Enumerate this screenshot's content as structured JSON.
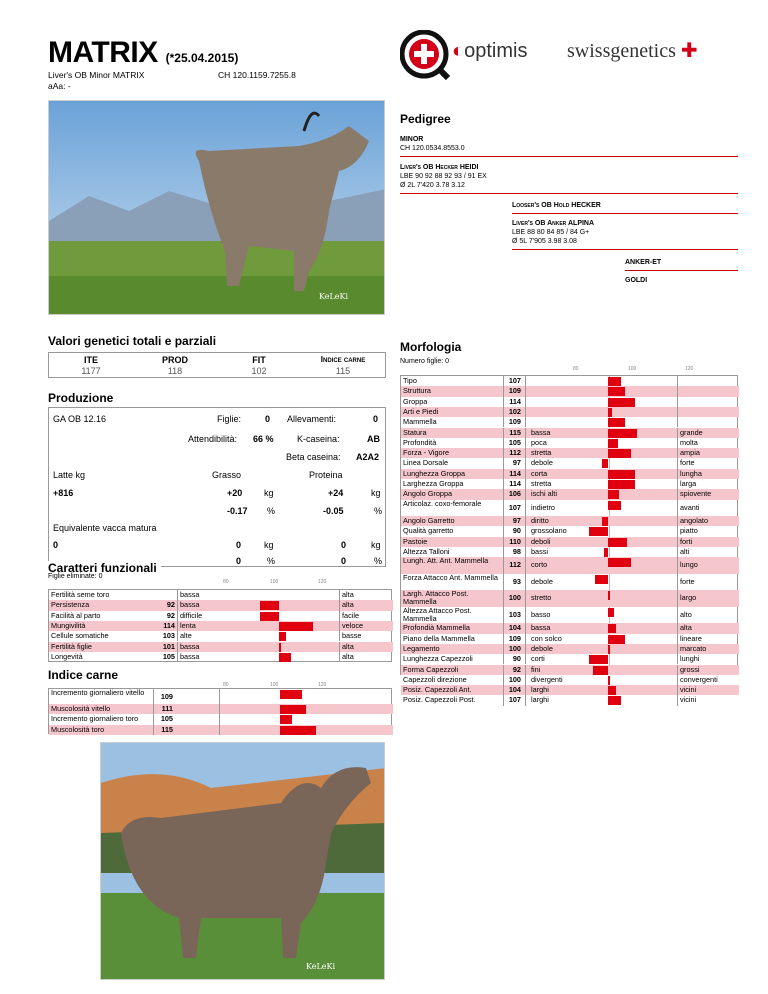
{
  "header": {
    "name": "MATRIX",
    "birth": "(*25.04.2015)",
    "full_name": "Liver's OB Minor MATRIX",
    "id": "CH 120.1159.7255.8",
    "aaa": "aAa: -"
  },
  "logos": {
    "seal_text": "swiss genetics",
    "optimis": "optimis",
    "swissgenetics": "swissgenetics"
  },
  "photo1": {
    "watermark": "KeLeKi"
  },
  "pedigree": {
    "title": "Pedigree",
    "sire": {
      "name": "MINOR",
      "id": "CH 120.0534.8553.0"
    },
    "dam": {
      "name": "Liver's OB Hecker HEIDI",
      "line1": "LBE 90 92 88 92 93 / 91 EX",
      "line2": "Ø 2L  7'420  3.78  3.12"
    },
    "mgs": {
      "name": "Looser's OB Hold HECKER"
    },
    "mgd": {
      "name": "Liver's OB Anker ALPINA",
      "line1": "LBE 88 80 84 85 / 84 G+",
      "line2": "Ø 5L  7'905  3.98  3.08"
    },
    "mgd_sire": {
      "name": "ANKER-ET"
    },
    "mgd_dam": {
      "name": "GOLDI"
    }
  },
  "valori": {
    "title": "Valori genetici totali e parziali",
    "cols": [
      {
        "label": "ITE",
        "value": "1177"
      },
      {
        "label": "PROD",
        "value": "118"
      },
      {
        "label": "FIT",
        "value": "102"
      },
      {
        "label": "Indice carne",
        "value": "115"
      }
    ]
  },
  "produzione": {
    "title": "Produzione",
    "ga": "GA OB 12.16",
    "figlie_label": "Figlie:",
    "figlie": "0",
    "allev_label": "Allevamenti:",
    "allev": "0",
    "att_label": "Attendibilità:",
    "att": "66 %",
    "kcas_label": "K-caseina:",
    "kcas": "AB",
    "bcas_label": "Beta caseina:",
    "bcas": "A2A2",
    "latte_label": "Latte kg",
    "grasso_label": "Grasso",
    "proteina_label": "Proteina",
    "latte": "+816",
    "grasso_kg": "+20",
    "prot_kg": "+24",
    "kg": "kg",
    "grasso_pct": "-0.17",
    "prot_pct": "-0.05",
    "pct": "%",
    "evm_label": "Equivalente vacca matura",
    "evm_latte": "0",
    "evm_g_kg": "0",
    "evm_p_kg": "0",
    "evm_g_pct": "0",
    "evm_p_pct": "0"
  },
  "funzionali": {
    "title": "Caratteri funzionali",
    "figlie_elim": "Figlie eliminate: 0",
    "scale": [
      "80",
      "100",
      "120"
    ],
    "rows": [
      {
        "label": "Fertilità seme toro",
        "value": "",
        "low": "bassa",
        "high": "alta",
        "v": null
      },
      {
        "label": "Persistenza",
        "value": "92",
        "low": "bassa",
        "high": "alta",
        "v": 92
      },
      {
        "label": "Facilità al parto",
        "value": "92",
        "low": "difficile",
        "high": "facile",
        "v": 92
      },
      {
        "label": "Mungivilità",
        "value": "114",
        "low": "lenta",
        "high": "veloce",
        "v": 114
      },
      {
        "label": "Cellule somatiche",
        "value": "103",
        "low": "alte",
        "high": "basse",
        "v": 103
      },
      {
        "label": "Fertilità figlie",
        "value": "101",
        "low": "bassa",
        "high": "alta",
        "v": 101
      },
      {
        "label": "Longevità",
        "value": "105",
        "low": "bassa",
        "high": "alta",
        "v": 105
      }
    ]
  },
  "carne": {
    "title": "Indice carne",
    "scale": [
      "80",
      "100",
      "120"
    ],
    "rows": [
      {
        "label": "Incremento giornaliero vitello",
        "value": "109",
        "v": 109
      },
      {
        "label": "Muscolosità vitello",
        "value": "111",
        "v": 111
      },
      {
        "label": "Incremento giornaliero toro",
        "value": "105",
        "v": 105
      },
      {
        "label": "Muscolosità toro",
        "value": "115",
        "v": 115
      }
    ]
  },
  "morfologia": {
    "title": "Morfologia",
    "figlie": "Numero figlie: 0",
    "scale": [
      "80",
      "100",
      "120"
    ],
    "rows": [
      {
        "label": "Tipo",
        "value": "107",
        "low": "",
        "high": "",
        "v": 107
      },
      {
        "label": "Struttura",
        "value": "109",
        "low": "",
        "high": "",
        "v": 109
      },
      {
        "label": "Groppa",
        "value": "114",
        "low": "",
        "high": "",
        "v": 114
      },
      {
        "label": "Arti e Piedi",
        "value": "102",
        "low": "",
        "high": "",
        "v": 102
      },
      {
        "label": "Mammella",
        "value": "109",
        "low": "",
        "high": "",
        "v": 109
      },
      {
        "label": "Statura",
        "value": "115",
        "low": "bassa",
        "high": "grande",
        "v": 115
      },
      {
        "label": "Profondità",
        "value": "105",
        "low": "poca",
        "high": "molta",
        "v": 105
      },
      {
        "label": "Forza - Vigore",
        "value": "112",
        "low": "stretta",
        "high": "ampia",
        "v": 112
      },
      {
        "label": "Linea Dorsale",
        "value": "97",
        "low": "debole",
        "high": "forte",
        "v": 97
      },
      {
        "label": "Lunghezza Groppa",
        "value": "114",
        "low": "corta",
        "high": "lungha",
        "v": 114
      },
      {
        "label": "Larghezza Groppa",
        "value": "114",
        "low": "stretta",
        "high": "larga",
        "v": 114
      },
      {
        "label": "Angolo Groppa",
        "value": "106",
        "low": "ischi alti",
        "high": "spiovente",
        "v": 106
      },
      {
        "label": "Articolaz. coxo-femorale",
        "value": "107",
        "low": "indietro",
        "high": "avanti",
        "v": 107
      },
      {
        "label": "Angolo Garretto",
        "value": "97",
        "low": "diritto",
        "high": "angolato",
        "v": 97
      },
      {
        "label": "Qualità garretto",
        "value": "90",
        "low": "grossolano",
        "high": "piatto",
        "v": 90
      },
      {
        "label": "Pastoie",
        "value": "110",
        "low": "deboli",
        "high": "forti",
        "v": 110
      },
      {
        "label": "Altezza Talloni",
        "value": "98",
        "low": "bassi",
        "high": "alti",
        "v": 98
      },
      {
        "label": "Lungh. Att. Ant. Mammella",
        "value": "112",
        "low": "corto",
        "high": "lungo",
        "v": 112
      },
      {
        "label": "Forza Attacco Ant. Mammella",
        "value": "93",
        "low": "debole",
        "high": "forte",
        "v": 93
      },
      {
        "label": "Largh. Attacco Post. Mammella",
        "value": "100",
        "low": "stretto",
        "high": "largo",
        "v": 100
      },
      {
        "label": "Altezza Attacco Post. Mammella",
        "value": "103",
        "low": "basso",
        "high": "alto",
        "v": 103
      },
      {
        "label": "Profondià Mammella",
        "value": "104",
        "low": "bassa",
        "high": "alta",
        "v": 104
      },
      {
        "label": "Piano della Mammella",
        "value": "109",
        "low": "con solco",
        "high": "lineare",
        "v": 109
      },
      {
        "label": "Legamento",
        "value": "100",
        "low": "debole",
        "high": "marcato",
        "v": 100
      },
      {
        "label": "Lunghezza Capezzoli",
        "value": "90",
        "low": "corti",
        "high": "lunghi",
        "v": 90
      },
      {
        "label": "Forma Capezzoli",
        "value": "92",
        "low": "fini",
        "high": "grossi",
        "v": 92
      },
      {
        "label": "Capezzoli direzione",
        "value": "100",
        "low": "divergenti",
        "high": "convergenti",
        "v": 100
      },
      {
        "label": "Posiz. Capezzoli Ant.",
        "value": "104",
        "low": "larghi",
        "high": "vicini",
        "v": 104
      },
      {
        "label": "Posiz. Capezzoli Post.",
        "value": "107",
        "low": "larghi",
        "high": "vicini",
        "v": 107
      }
    ]
  },
  "photo2": {
    "watermark": "KeLeKi"
  }
}
